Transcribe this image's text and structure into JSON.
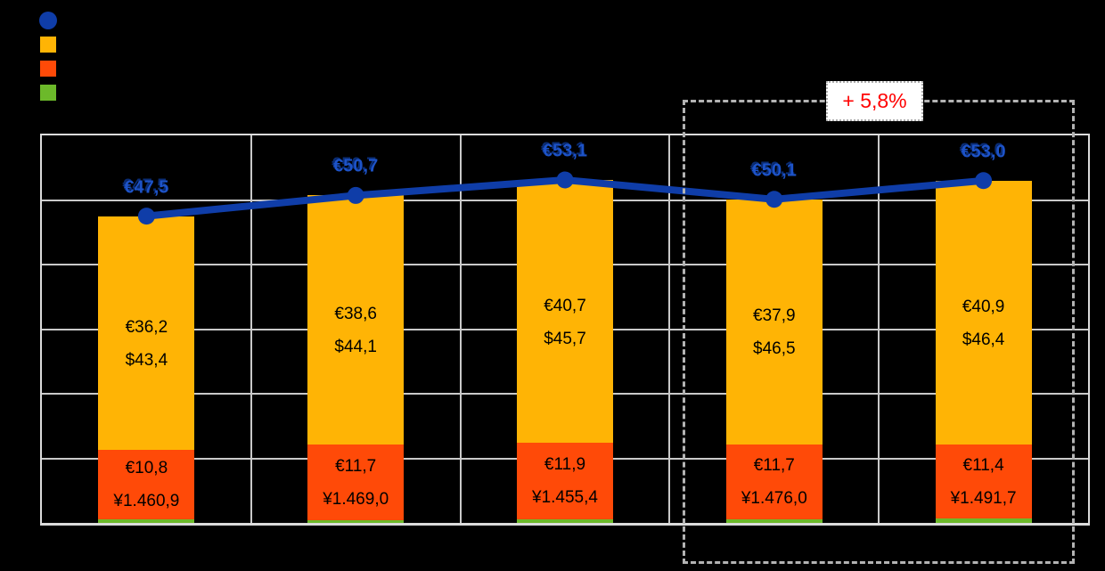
{
  "colors": {
    "background": "#000000",
    "line": "#0F3DA8",
    "line_label": "#1D53C8",
    "line_label_shadow": "#0A2C74",
    "amber_segment": "#FFB405",
    "red_segment": "#FF4A08",
    "green_segment": "#6CB92A",
    "grid": "#C9C9C9",
    "plot_border": "#DBDBDB",
    "highlight_border": "#B3B3B3",
    "badge_text": "#FF0000",
    "bar_label": "#000000"
  },
  "legend": {
    "position": "top-left",
    "items": [
      {
        "shape": "circle",
        "color_key": "line",
        "label": ""
      },
      {
        "shape": "square",
        "color_key": "amber_segment",
        "label": ""
      },
      {
        "shape": "square",
        "color_key": "red_segment",
        "label": ""
      },
      {
        "shape": "square",
        "color_key": "green_segment",
        "label": ""
      }
    ]
  },
  "chart_data": {
    "type": "bar",
    "subtype": "stacked-bars-with-line-overlay",
    "categories": [
      "",
      "",
      "",
      "",
      ""
    ],
    "ylim": [
      0,
      60
    ],
    "grid_step": 10,
    "grid": true,
    "legend_position": "top-left",
    "series": [
      {
        "name": "total-line",
        "type": "line",
        "values": [
          47.5,
          50.7,
          53.1,
          50.1,
          53.0
        ],
        "labels": [
          "€47,5",
          "€50,7",
          "€53,1",
          "€50,1",
          "€53,0"
        ]
      },
      {
        "name": "amber-segment",
        "type": "bar-segment",
        "stack_order": 3,
        "values": [
          36.2,
          38.6,
          40.7,
          37.9,
          40.9
        ],
        "labels": [
          [
            "€36,2",
            "$43,4"
          ],
          [
            "€38,6",
            "$44,1"
          ],
          [
            "€40,7",
            "$45,7"
          ],
          [
            "€37,9",
            "$46,5"
          ],
          [
            "€40,9",
            "$46,4"
          ]
        ]
      },
      {
        "name": "red-segment",
        "type": "bar-segment",
        "stack_order": 2,
        "values": [
          10.8,
          11.7,
          11.9,
          11.7,
          11.4
        ],
        "labels": [
          [
            "€10,8",
            "¥1.460,9"
          ],
          [
            "€11,7",
            "¥1.469,0"
          ],
          [
            "€11,9",
            "¥1.455,4"
          ],
          [
            "€11,7",
            "¥1.476,0"
          ],
          [
            "€11,4",
            "¥1.491,7"
          ]
        ]
      },
      {
        "name": "green-segment",
        "type": "bar-segment",
        "stack_order": 1,
        "values": [
          0.5,
          0.4,
          0.5,
          0.5,
          0.7
        ],
        "labels": []
      }
    ],
    "highlight": {
      "label": "+ 5,8%",
      "category_indexes": [
        3,
        4
      ]
    }
  }
}
